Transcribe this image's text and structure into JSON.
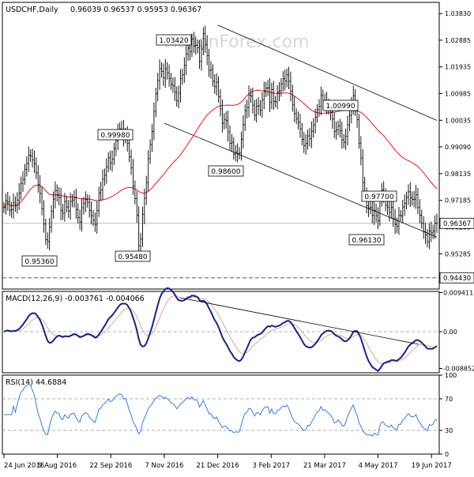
{
  "chart_data": {
    "type": "candlestick",
    "title": "USDCHF,Daily",
    "ohlc_text": "0.96039 0.96537 0.95953 0.96367",
    "watermark": "ActionForex.com",
    "x_tick_labels": [
      "24 Jun 2016",
      "9 Aug 2016",
      "22 Sep 2016",
      "7 Nov 2016",
      "21 Dec 2016",
      "3 Feb 2017",
      "21 Mar 2017",
      "4 May 2017",
      "19 Jun 2017"
    ],
    "price_panel": {
      "ylim": [
        0.9403,
        1.0423
      ],
      "y_tick_labels": [
        "1.03830",
        "1.02885",
        "1.01935",
        "1.00985",
        "1.00035",
        "0.99090",
        "0.98135",
        "0.97185",
        "0.96235",
        "0.95285"
      ],
      "y_tick_values": [
        1.0383,
        1.02885,
        1.01935,
        1.00985,
        1.00035,
        0.9909,
        0.98135,
        0.97185,
        0.96235,
        0.95285
      ],
      "current_price_label": "0.96367",
      "current_price": 0.96367,
      "support_label": "0.94430",
      "support_value": 0.9443,
      "annotations": [
        {
          "label": "1.03420",
          "value": 1.0342
        },
        {
          "label": "0.99980",
          "value": 0.9998
        },
        {
          "label": "0.98600",
          "value": 0.986
        },
        {
          "label": "1.00990",
          "value": 1.0099
        },
        {
          "label": "0.97700",
          "value": 0.977
        },
        {
          "label": "0.96130",
          "value": 0.9613
        },
        {
          "label": "0.95360",
          "value": 0.9536
        },
        {
          "label": "0.95480",
          "value": 0.9548
        }
      ],
      "series": [
        {
          "name": "price",
          "values": [
            0.9693,
            0.9717,
            0.9713,
            0.9684,
            0.9686,
            0.971,
            0.97,
            0.9719,
            0.9745,
            0.9779,
            0.9793,
            0.9829,
            0.985,
            0.9879,
            0.9876,
            0.9862,
            0.9849,
            0.9816,
            0.9774,
            0.9743,
            0.9689,
            0.9634,
            0.9579,
            0.9572,
            0.9624,
            0.968,
            0.9723,
            0.9753,
            0.9737,
            0.9729,
            0.9682,
            0.9673,
            0.9715,
            0.9695,
            0.9681,
            0.9715,
            0.972,
            0.9727,
            0.9686,
            0.9658,
            0.9642,
            0.9692,
            0.9707,
            0.9721,
            0.9712,
            0.9683,
            0.9664,
            0.9648,
            0.9633,
            0.9682,
            0.9745,
            0.9756,
            0.9794,
            0.9808,
            0.9838,
            0.987,
            0.9852,
            0.9865,
            0.9903,
            0.9931,
            0.9958,
            0.9973,
            0.997,
            0.9945,
            0.9953,
            0.9922,
            0.9874,
            0.9834,
            0.9769,
            0.9725,
            0.9665,
            0.9557,
            0.9581,
            0.9668,
            0.9726,
            0.9782,
            0.9867,
            0.9917,
            0.9964,
            1.0035,
            1.0098,
            1.0145,
            1.0187,
            1.0177,
            1.0154,
            1.0187,
            1.0172,
            1.0153,
            1.0131,
            1.0126,
            1.0103,
            1.0073,
            1.01,
            1.0152,
            1.0165,
            1.0199,
            1.0239,
            1.026,
            1.0247,
            1.0293,
            1.0268,
            1.027,
            1.0262,
            1.0213,
            1.0257,
            1.0312,
            1.0272,
            1.0234,
            1.0181,
            1.0184,
            1.0142,
            1.0123,
            1.0139,
            1.0087,
            1.0044,
            0.9993,
            1.0007,
            1.0003,
            0.9962,
            0.9921,
            0.9925,
            0.9883,
            0.989,
            0.9885,
            0.9887,
            0.9936,
            0.9988,
            1.0038,
            1.0049,
            1.0093,
            1.009,
            1.0057,
            1.0021,
            1.0054,
            1.0055,
            1.0039,
            1.0076,
            1.0108,
            1.0118,
            1.0119,
            1.0067,
            1.0113,
            1.0071,
            1.0069,
            1.0103,
            1.0108,
            1.0133,
            1.0151,
            1.0143,
            1.0165,
            1.0142,
            1.0106,
            1.0058,
            1.0027,
            1.0009,
            0.9996,
            0.9973,
            0.9935,
            0.9914,
            0.9921,
            0.9948,
            0.9939,
            0.9965,
            0.9987,
            1.0014,
            1.0041,
            1.0053,
            1.0092,
            1.0063,
            1.0072,
            1.0058,
            1.0046,
            1.0032,
            1.0008,
            0.9964,
            0.9969,
            0.9983,
            0.9967,
            0.9934,
            0.9925,
            0.9947,
            0.9987,
            1.0021,
            1.0058,
            1.0091,
            1.0043,
            1.0006,
            0.9922,
            0.9869,
            0.9782,
            0.9737,
            0.9699,
            0.9692,
            0.9693,
            0.9665,
            0.9683,
            0.9664,
            0.9646,
            0.9721,
            0.9755,
            0.9741,
            0.9701,
            0.9693,
            0.9676,
            0.9693,
            0.9653,
            0.9633,
            0.9626,
            0.9665,
            0.9664,
            0.9695,
            0.9708,
            0.9729,
            0.9749,
            0.9728,
            0.9722,
            0.9723,
            0.9739,
            0.9693,
            0.9666,
            0.9637,
            0.9607,
            0.9595,
            0.9572,
            0.961,
            0.9603,
            0.961,
            0.9637,
            0.9637
          ]
        }
      ],
      "indicator": {
        "name": "SMA",
        "color": "#e8262a"
      },
      "channel_lines": [
        {
          "name": "upper",
          "from": {
            "date": "21 Dec 2016",
            "value": 1.0342
          },
          "to": {
            "date": "23 Jun 2017",
            "value": 1.0003
          }
        },
        {
          "name": "lower",
          "from": {
            "date": "7 Nov 2016",
            "value": 0.9993
          },
          "to": {
            "date": "23 Jun 2017",
            "value": 0.9588
          }
        }
      ]
    },
    "macd_panel": {
      "label": "MACD(12,26,9) -0.003761 -0.004066",
      "ylim": [
        -0.0099,
        0.0097
      ],
      "y_tick_labels": [
        "0.009411",
        "0.00",
        "-0.008852"
      ],
      "y_tick_values": [
        0.009411,
        0,
        -0.008852
      ]
    },
    "rsi_panel": {
      "label": "RSI(14) 44.6884",
      "ylim": [
        0,
        100
      ],
      "y_tick_labels": [
        "100",
        "70",
        "30",
        "0"
      ],
      "y_tick_values": [
        100,
        70,
        30,
        0
      ],
      "levels": [
        70,
        30
      ]
    },
    "colors": {
      "price": "#000000",
      "sma": "#e8262a",
      "macd": "#1a237e",
      "signal": "#e8a0a0",
      "rsi": "#3b7dd8",
      "grid": "#888888"
    },
    "grid": true
  }
}
